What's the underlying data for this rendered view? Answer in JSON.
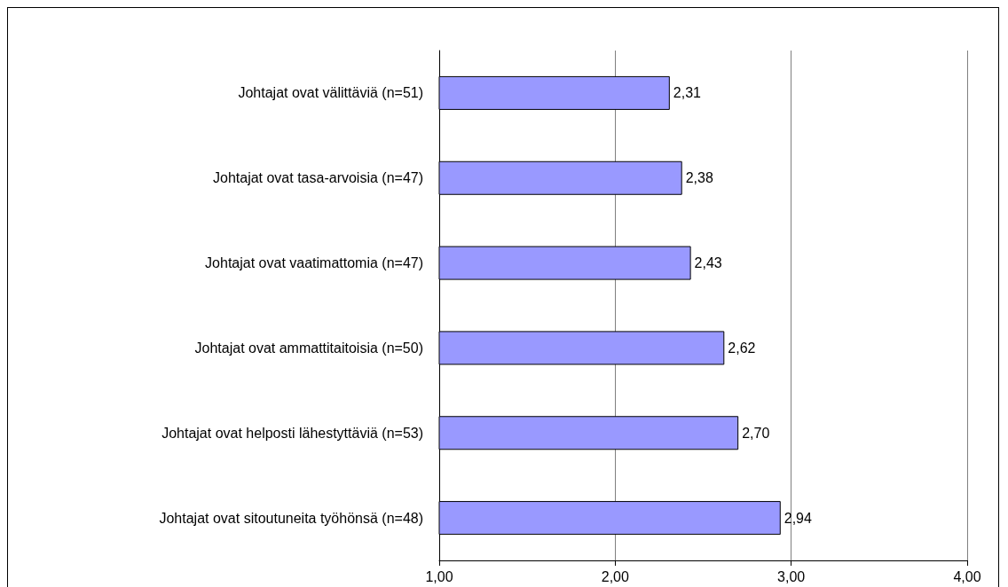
{
  "chart_data": {
    "type": "bar",
    "orientation": "horizontal",
    "categories": [
      "Johtajat ovat välittäviä (n=51)",
      "Johtajat ovat tasa-arvoisia (n=47)",
      "Johtajat ovat vaatimattomia (n=47)",
      "Johtajat ovat ammattitaitoisia (n=50)",
      "Johtajat ovat helposti lähestyttäviä (n=53)",
      "Johtajat ovat sitoutuneita työhönsä (n=48)"
    ],
    "values": [
      2.31,
      2.38,
      2.43,
      2.62,
      2.7,
      2.94
    ],
    "value_labels": [
      "2,31",
      "2,38",
      "2,43",
      "2,62",
      "2,70",
      "2,94"
    ],
    "color": "#9999ff",
    "xlim": [
      1,
      4
    ],
    "xticks": [
      {
        "value": 1,
        "label": "1,00"
      },
      {
        "value": 2,
        "label": "2,00"
      },
      {
        "value": 3,
        "label": "3,00"
      },
      {
        "value": 4,
        "label": "4,00"
      }
    ],
    "grid": "x"
  }
}
